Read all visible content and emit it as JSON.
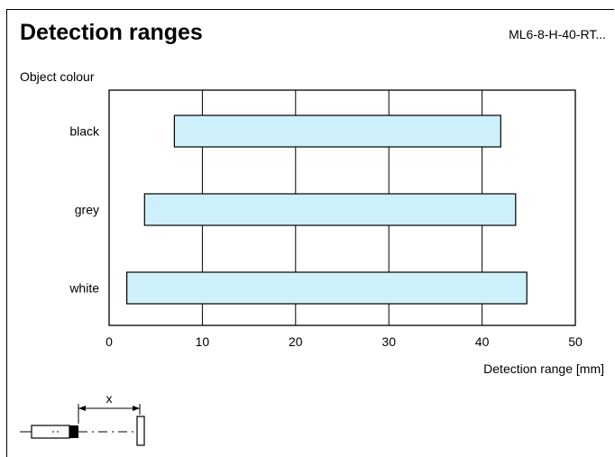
{
  "header": {
    "title": "Detection ranges",
    "model": "ML6-8-H-40-RT..."
  },
  "colors": {
    "bar_fill": "#cdf0fa",
    "line": "#000000"
  },
  "chart_data": {
    "type": "bar",
    "orientation": "horizontal",
    "title": "Detection ranges",
    "ylabel": "Object colour",
    "xlabel": "Detection range [mm]",
    "xlim": [
      0,
      50
    ],
    "xticks": [
      0,
      10,
      20,
      30,
      40,
      50
    ],
    "grid": true,
    "legend": "none",
    "categories": [
      "black",
      "grey",
      "white"
    ],
    "series": [
      {
        "ranges": [
          {
            "category": "black",
            "start": 7,
            "end": 42
          },
          {
            "category": "grey",
            "start": 3.8,
            "end": 43.6
          },
          {
            "category": "white",
            "start": 1.9,
            "end": 44.8
          }
        ]
      }
    ]
  },
  "diagram": {
    "distance_label": "x"
  }
}
